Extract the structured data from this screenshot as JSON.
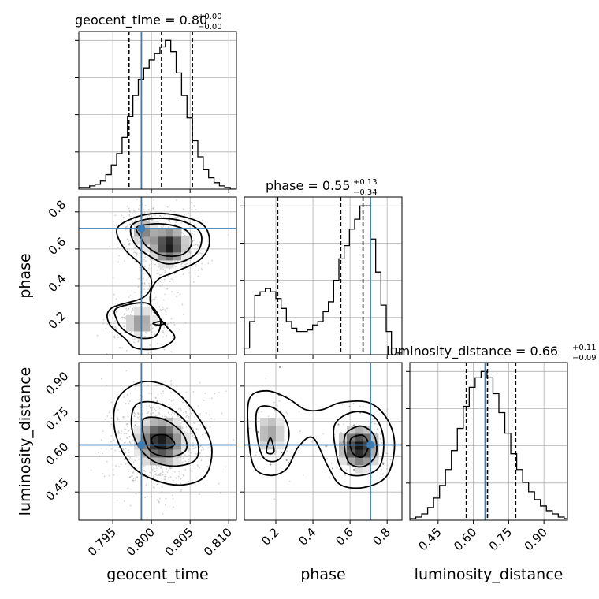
{
  "chart_data": {
    "type": "corner",
    "parameters": [
      "geocent_time",
      "phase",
      "luminosity_distance"
    ],
    "truth": {
      "geocent_time": 0.7987,
      "phase": 0.71,
      "luminosity_distance": 0.65
    },
    "titles": [
      {
        "name": "geocent_time",
        "median": "0.80",
        "plus": "+0.00",
        "minus": "−0.00"
      },
      {
        "name": "phase",
        "median": "0.55",
        "plus": "+0.13",
        "minus": "−0.34"
      },
      {
        "name": "luminosity_distance",
        "median": "0.66",
        "plus": "+0.11",
        "minus": "−0.09"
      }
    ],
    "axes": {
      "geocent_time": {
        "range": [
          0.7906,
          0.811
        ],
        "ticks": [
          0.795,
          0.8,
          0.805,
          0.81
        ],
        "tick_labels": [
          "0.795",
          "0.800",
          "0.805",
          "0.810"
        ]
      },
      "phase": {
        "range": [
          0.03,
          0.88
        ],
        "ticks": [
          0.2,
          0.4,
          0.6,
          0.8
        ],
        "tick_labels": [
          "0.2",
          "0.4",
          "0.6",
          "0.8"
        ]
      },
      "luminosity_distance": {
        "range": [
          0.33,
          1.0
        ],
        "ticks": [
          0.45,
          0.6,
          0.75,
          0.9
        ],
        "tick_labels": [
          "0.45",
          "0.60",
          "0.75",
          "0.90"
        ]
      }
    },
    "histograms": {
      "geocent_time": {
        "bin_edges": [
          0.7906,
          0.7913,
          0.792,
          0.7927,
          0.7934,
          0.7941,
          0.7948,
          0.7955,
          0.7962,
          0.7969,
          0.7976,
          0.7983,
          0.799,
          0.7997,
          0.8004,
          0.8011,
          0.8018,
          0.8025,
          0.8032,
          0.8039,
          0.8046,
          0.8053,
          0.806,
          0.8067,
          0.8074,
          0.8081,
          0.8088,
          0.8095,
          0.8102,
          0.811
        ],
        "counts": [
          1,
          1,
          2,
          3,
          5,
          9,
          15,
          22,
          32,
          45,
          58,
          68,
          75,
          80,
          84,
          88,
          92,
          85,
          72,
          58,
          44,
          30,
          20,
          12,
          7,
          4,
          2,
          1,
          0
        ],
        "quantiles": [
          0.7971,
          0.8013,
          0.8053
        ]
      },
      "phase": {
        "bin_edges": [
          0.03,
          0.0583,
          0.0867,
          0.115,
          0.1433,
          0.1717,
          0.2,
          0.2283,
          0.2567,
          0.285,
          0.3133,
          0.3417,
          0.37,
          0.3983,
          0.4267,
          0.455,
          0.4833,
          0.5117,
          0.54,
          0.5683,
          0.5967,
          0.625,
          0.6533,
          0.6817,
          0.71,
          0.7383,
          0.7667,
          0.795,
          0.8233,
          0.8517,
          0.88
        ],
        "counts": [
          4,
          20,
          36,
          38,
          40,
          38,
          34,
          28,
          20,
          16,
          14,
          14,
          15,
          18,
          20,
          26,
          32,
          45,
          58,
          66,
          76,
          82,
          90,
          90,
          70,
          50,
          30,
          14,
          4,
          1
        ],
        "quantiles": [
          0.21,
          0.55,
          0.67
        ]
      },
      "luminosity_distance": {
        "bin_edges": [
          0.33,
          0.3552,
          0.3805,
          0.4057,
          0.4309,
          0.4562,
          0.4814,
          0.5066,
          0.5319,
          0.5571,
          0.5823,
          0.6076,
          0.6328,
          0.658,
          0.6833,
          0.7085,
          0.7338,
          0.759,
          0.7842,
          0.8095,
          0.8347,
          0.8599,
          0.8852,
          0.9104,
          0.9356,
          0.9609,
          0.9861,
          1.0
        ],
        "counts": [
          1,
          2,
          4,
          8,
          14,
          22,
          32,
          44,
          58,
          72,
          84,
          90,
          94,
          90,
          80,
          68,
          55,
          42,
          32,
          24,
          18,
          13,
          9,
          6,
          4,
          2,
          1
        ],
        "quantiles": [
          0.57,
          0.66,
          0.78
        ]
      }
    },
    "contours": {
      "phase_vs_geocent_time": [
        [
          [
            0.797,
            0.755
          ],
          [
            0.8,
            0.79
          ],
          [
            0.8035,
            0.78
          ],
          [
            0.8067,
            0.73
          ],
          [
            0.8075,
            0.63
          ],
          [
            0.8062,
            0.54
          ],
          [
            0.803,
            0.475
          ],
          [
            0.801,
            0.44
          ],
          [
            0.8,
            0.38
          ],
          [
            0.8,
            0.29
          ],
          [
            0.8018,
            0.19
          ],
          [
            0.803,
            0.12
          ],
          [
            0.801,
            0.065
          ],
          [
            0.798,
            0.065
          ],
          [
            0.7965,
            0.12
          ],
          [
            0.7945,
            0.2
          ],
          [
            0.7948,
            0.28
          ],
          [
            0.799,
            0.34
          ],
          [
            0.8,
            0.43
          ],
          [
            0.7985,
            0.52
          ],
          [
            0.7965,
            0.6
          ],
          [
            0.7955,
            0.7
          ]
        ],
        [
          [
            0.7978,
            0.74
          ],
          [
            0.8005,
            0.765
          ],
          [
            0.804,
            0.75
          ],
          [
            0.8063,
            0.69
          ],
          [
            0.8062,
            0.6
          ],
          [
            0.8045,
            0.54
          ],
          [
            0.802,
            0.52
          ],
          [
            0.7998,
            0.56
          ],
          [
            0.798,
            0.62
          ],
          [
            0.7973,
            0.69
          ]
        ],
        [
          [
            0.7982,
            0.72
          ],
          [
            0.8015,
            0.735
          ],
          [
            0.8045,
            0.7
          ],
          [
            0.8052,
            0.63
          ],
          [
            0.804,
            0.57
          ],
          [
            0.8015,
            0.565
          ],
          [
            0.7995,
            0.61
          ],
          [
            0.7985,
            0.67
          ]
        ],
        [
          [
            0.7955,
            0.28
          ],
          [
            0.799,
            0.31
          ],
          [
            0.8005,
            0.27
          ],
          [
            0.8012,
            0.2
          ],
          [
            0.8005,
            0.13
          ],
          [
            0.7985,
            0.12
          ],
          [
            0.7965,
            0.16
          ],
          [
            0.7955,
            0.22
          ]
        ],
        [
          [
            0.8002,
            0.198
          ],
          [
            0.801,
            0.208
          ],
          [
            0.8018,
            0.2
          ],
          [
            0.801,
            0.19
          ]
        ]
      ],
      "luminosity_distance_vs_geocent_time": [
        [
          [
            0.7965,
            0.88
          ],
          [
            0.7995,
            0.92
          ],
          [
            0.803,
            0.88
          ],
          [
            0.8062,
            0.76
          ],
          [
            0.8078,
            0.64
          ],
          [
            0.807,
            0.52
          ],
          [
            0.804,
            0.48
          ],
          [
            0.8005,
            0.5
          ],
          [
            0.7975,
            0.56
          ],
          [
            0.7955,
            0.68
          ],
          [
            0.7952,
            0.8
          ]
        ],
        [
          [
            0.798,
            0.82
          ],
          [
            0.8005,
            0.83
          ],
          [
            0.8035,
            0.78
          ],
          [
            0.8058,
            0.68
          ],
          [
            0.8058,
            0.59
          ],
          [
            0.8032,
            0.56
          ],
          [
            0.8003,
            0.58
          ],
          [
            0.7982,
            0.65
          ],
          [
            0.7974,
            0.74
          ]
        ],
        [
          [
            0.799,
            0.76
          ],
          [
            0.8015,
            0.76
          ],
          [
            0.804,
            0.7
          ],
          [
            0.8045,
            0.63
          ],
          [
            0.8025,
            0.6
          ],
          [
            0.8,
            0.62
          ],
          [
            0.799,
            0.69
          ]
        ],
        [
          [
            0.8005,
            0.69
          ],
          [
            0.802,
            0.69
          ],
          [
            0.803,
            0.655
          ],
          [
            0.802,
            0.635
          ],
          [
            0.8005,
            0.645
          ],
          [
            0.8,
            0.67
          ]
        ]
      ],
      "luminosity_distance_vs_phase": [
        [
          [
            0.06,
            0.85
          ],
          [
            0.15,
            0.88
          ],
          [
            0.26,
            0.85
          ],
          [
            0.36,
            0.8
          ],
          [
            0.45,
            0.8
          ],
          [
            0.55,
            0.83
          ],
          [
            0.7,
            0.83
          ],
          [
            0.8,
            0.76
          ],
          [
            0.84,
            0.65
          ],
          [
            0.8,
            0.52
          ],
          [
            0.68,
            0.47
          ],
          [
            0.55,
            0.48
          ],
          [
            0.48,
            0.56
          ],
          [
            0.4,
            0.68
          ],
          [
            0.32,
            0.64
          ],
          [
            0.26,
            0.55
          ],
          [
            0.17,
            0.52
          ],
          [
            0.08,
            0.56
          ],
          [
            0.05,
            0.72
          ]
        ],
        [
          [
            0.1,
            0.8
          ],
          [
            0.18,
            0.81
          ],
          [
            0.25,
            0.76
          ],
          [
            0.27,
            0.68
          ],
          [
            0.22,
            0.59
          ],
          [
            0.14,
            0.59
          ],
          [
            0.1,
            0.68
          ]
        ],
        [
          [
            0.52,
            0.74
          ],
          [
            0.62,
            0.79
          ],
          [
            0.73,
            0.77
          ],
          [
            0.78,
            0.68
          ],
          [
            0.76,
            0.56
          ],
          [
            0.66,
            0.52
          ],
          [
            0.56,
            0.54
          ],
          [
            0.52,
            0.64
          ]
        ],
        [
          [
            0.58,
            0.7
          ],
          [
            0.66,
            0.73
          ],
          [
            0.73,
            0.69
          ],
          [
            0.74,
            0.61
          ],
          [
            0.68,
            0.56
          ],
          [
            0.6,
            0.57
          ],
          [
            0.57,
            0.64
          ]
        ],
        [
          [
            0.61,
            0.68
          ],
          [
            0.67,
            0.69
          ],
          [
            0.7,
            0.65
          ],
          [
            0.67,
            0.6
          ],
          [
            0.62,
            0.61
          ],
          [
            0.6,
            0.65
          ]
        ],
        [
          [
            0.15,
            0.62
          ],
          [
            0.17,
            0.68
          ],
          [
            0.19,
            0.62
          ]
        ]
      ]
    },
    "density_blobs": {
      "phase_vs_geocent_time": [
        {
          "x": 0.8023,
          "y": 0.62,
          "sx": 0.0015,
          "sy": 0.065,
          "w": 1.0
        },
        {
          "x": 0.799,
          "y": 0.69,
          "sx": 0.001,
          "sy": 0.05,
          "w": 0.55
        },
        {
          "x": 0.7985,
          "y": 0.2,
          "sx": 0.0014,
          "sy": 0.055,
          "w": 0.55
        },
        {
          "x": 0.8,
          "y": 0.4,
          "sx": 0.001,
          "sy": 0.1,
          "w": 0.15
        }
      ],
      "luminosity_distance_vs_geocent_time": [
        {
          "x": 0.8012,
          "y": 0.665,
          "sx": 0.002,
          "sy": 0.07,
          "w": 1.0
        }
      ],
      "luminosity_distance_vs_phase": [
        {
          "x": 0.65,
          "y": 0.64,
          "sx": 0.07,
          "sy": 0.06,
          "w": 1.0
        },
        {
          "x": 0.17,
          "y": 0.7,
          "sx": 0.06,
          "sy": 0.07,
          "w": 0.5
        }
      ]
    }
  }
}
